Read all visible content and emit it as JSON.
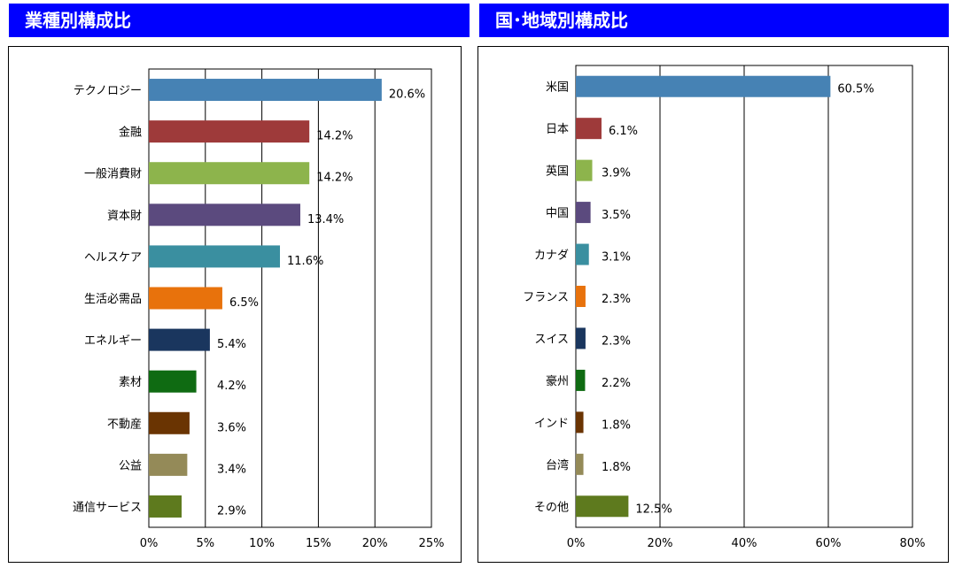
{
  "charts_panel": {
    "left_title": "業種別構成比",
    "right_title": "国･地域別構成比"
  },
  "chart_data": [
    {
      "type": "bar",
      "orientation": "horizontal",
      "title": "業種別構成比",
      "categories": [
        "テクノロジー",
        "金融",
        "一般消費財",
        "資本財",
        "ヘルスケア",
        "生活必需品",
        "エネルギー",
        "素材",
        "不動産",
        "公益",
        "通信サービス"
      ],
      "values": [
        20.6,
        14.2,
        14.2,
        13.4,
        11.6,
        6.5,
        5.4,
        4.2,
        3.6,
        3.4,
        2.9
      ],
      "value_labels": [
        "20.6%",
        "14.2%",
        "14.2%",
        "13.4%",
        "11.6%",
        "6.5%",
        "5.4%",
        "4.2%",
        "3.6%",
        "3.4%",
        "2.9%"
      ],
      "colors": [
        "#4682b4",
        "#9e3a3a",
        "#8db44c",
        "#5b4a7e",
        "#3a8fa0",
        "#e8720c",
        "#1a365e",
        "#0f6b12",
        "#6a3402",
        "#948a58",
        "#5e7a1e"
      ],
      "xlim": [
        0,
        25
      ],
      "xticks": [
        0,
        5,
        10,
        15,
        20,
        25
      ],
      "xtick_labels": [
        "0%",
        "5%",
        "10%",
        "15%",
        "20%",
        "25%"
      ],
      "grid": true,
      "legend": "none"
    },
    {
      "type": "bar",
      "orientation": "horizontal",
      "title": "国･地域別構成比",
      "categories": [
        "米国",
        "日本",
        "英国",
        "中国",
        "カナダ",
        "フランス",
        "スイス",
        "豪州",
        "インド",
        "台湾",
        "その他"
      ],
      "values": [
        60.5,
        6.1,
        3.9,
        3.5,
        3.1,
        2.3,
        2.3,
        2.2,
        1.8,
        1.8,
        12.5
      ],
      "value_labels": [
        "60.5%",
        "6.1%",
        "3.9%",
        "3.5%",
        "3.1%",
        "2.3%",
        "2.3%",
        "2.2%",
        "1.8%",
        "1.8%",
        "12.5%"
      ],
      "colors": [
        "#4682b4",
        "#9e3a3a",
        "#8db44c",
        "#5b4a7e",
        "#3a8fa0",
        "#e8720c",
        "#1a365e",
        "#0f6b12",
        "#6a3402",
        "#948a58",
        "#5e7a1e"
      ],
      "xlim": [
        0,
        80
      ],
      "xticks": [
        0,
        20,
        40,
        60,
        80
      ],
      "xtick_labels": [
        "0%",
        "20%",
        "40%",
        "60%",
        "80%"
      ],
      "grid": true,
      "legend": "none"
    }
  ]
}
